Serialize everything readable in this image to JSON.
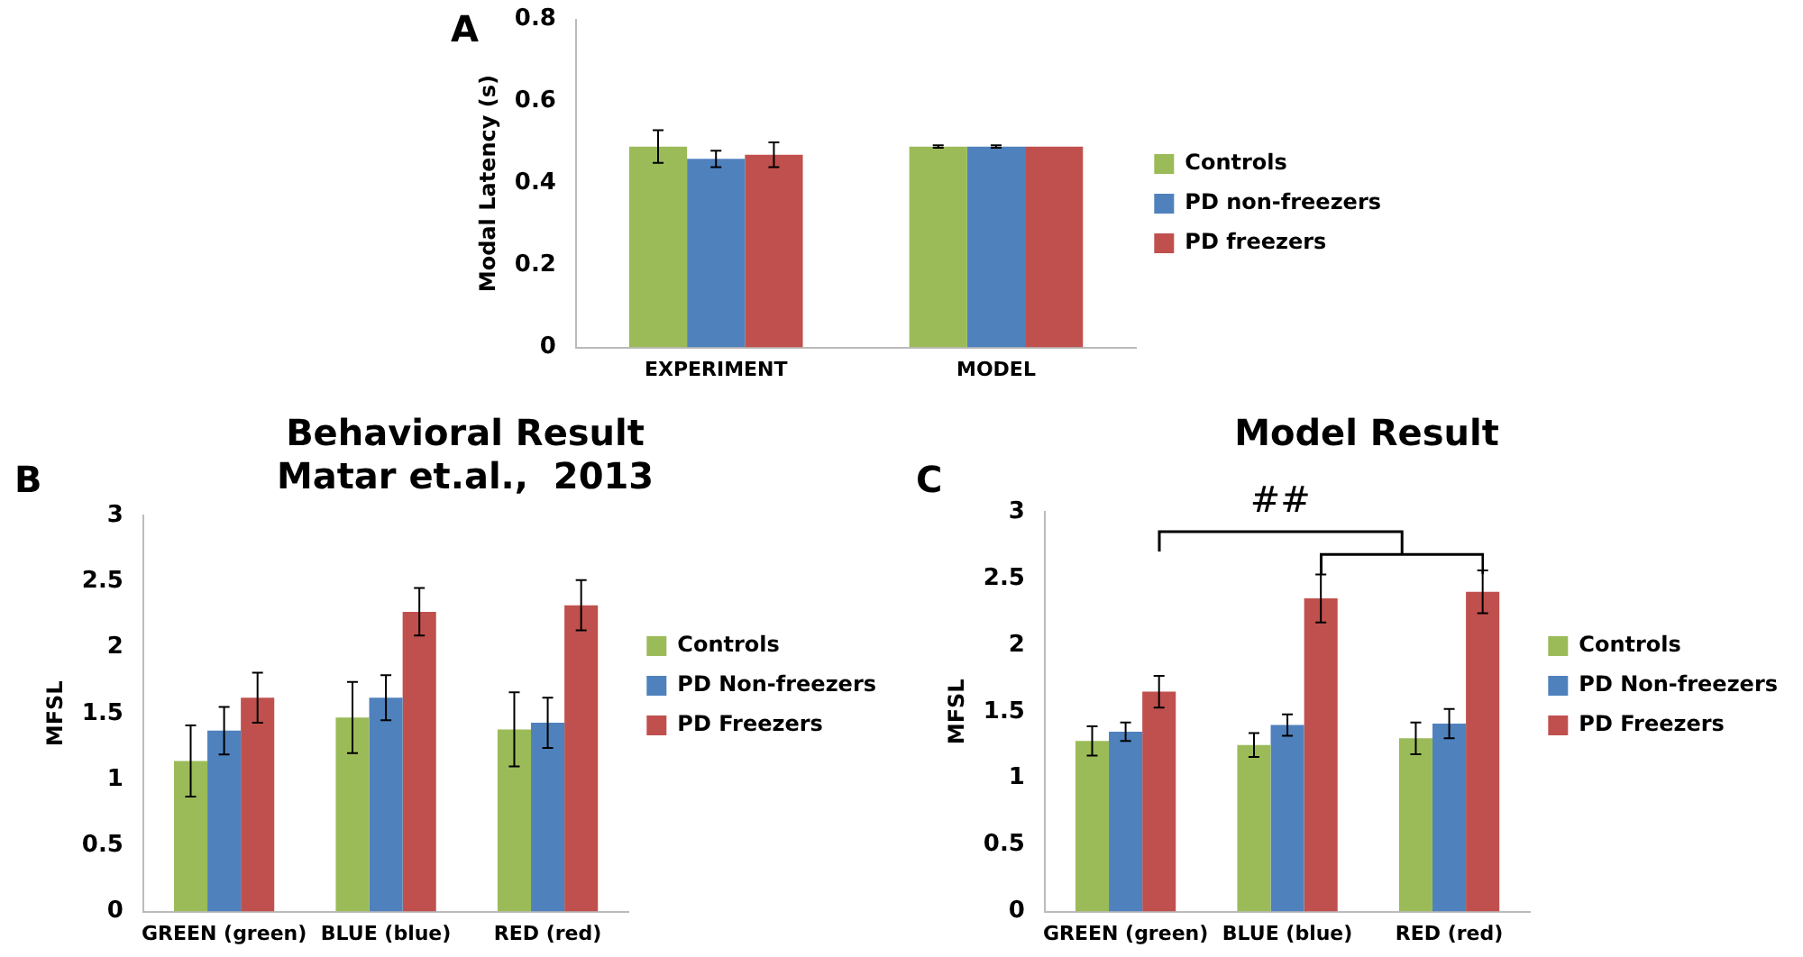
{
  "chart_data": [
    {
      "type": "bar",
      "annotations": [
        "A"
      ],
      "ylabel": "Modal Latency (s)",
      "categories": [
        "EXPERIMENT",
        "MODEL"
      ],
      "series": [
        {
          "name": "Controls",
          "color": "#9bbb59",
          "values": [
            0.49,
            0.49
          ],
          "errors": [
            0.04,
            0.003
          ]
        },
        {
          "name": "PD non-freezers",
          "color": "#4f81bd",
          "values": [
            0.46,
            0.49
          ],
          "errors": [
            0.02,
            0.003
          ]
        },
        {
          "name": "PD freezers",
          "color": "#c0504d",
          "values": [
            0.47,
            0.49
          ],
          "errors": [
            0.03,
            null
          ]
        }
      ],
      "ylim": [
        0,
        0.8
      ],
      "yticks": [
        0,
        0.2,
        0.4,
        0.6,
        0.8
      ],
      "grid": false,
      "legend": "right"
    },
    {
      "type": "bar",
      "annotations": [
        "B"
      ],
      "title": "Behavioral Result",
      "subtitle": "Matar et.al.,  2013",
      "ylabel": "MFSL",
      "categories": [
        "GREEN (green)",
        "BLUE (blue)",
        "RED (red)"
      ],
      "series": [
        {
          "name": "Controls",
          "color": "#9bbb59",
          "values": [
            1.14,
            1.47,
            1.38
          ],
          "errors": [
            0.27,
            0.27,
            0.28
          ]
        },
        {
          "name": "PD Non-freezers",
          "color": "#4f81bd",
          "values": [
            1.37,
            1.62,
            1.43
          ],
          "errors": [
            0.18,
            0.17,
            0.19
          ]
        },
        {
          "name": "PD Freezers",
          "color": "#c0504d",
          "values": [
            1.62,
            2.27,
            2.32
          ],
          "errors": [
            0.19,
            0.18,
            0.19
          ]
        }
      ],
      "ylim": [
        0,
        3
      ],
      "yticks": [
        0,
        0.5,
        1,
        1.5,
        2,
        2.5,
        3
      ],
      "grid": false,
      "legend": "right"
    },
    {
      "type": "bar",
      "annotations": [
        "C",
        "##"
      ],
      "title": "Model Result",
      "ylabel": "MFSL",
      "categories": [
        "GREEN (green)",
        "BLUE (blue)",
        "RED (red)"
      ],
      "series": [
        {
          "name": "Controls",
          "color": "#9bbb59",
          "values": [
            1.28,
            1.25,
            1.3
          ],
          "errors": [
            0.11,
            0.09,
            0.12
          ]
        },
        {
          "name": "PD Non-freezers",
          "color": "#4f81bd",
          "values": [
            1.35,
            1.4,
            1.41
          ],
          "errors": [
            0.07,
            0.08,
            0.11
          ]
        },
        {
          "name": "PD Freezers",
          "color": "#c0504d",
          "values": [
            1.65,
            2.35,
            2.4
          ],
          "errors": [
            0.12,
            0.18,
            0.16
          ]
        }
      ],
      "ylim": [
        0,
        3
      ],
      "yticks": [
        0,
        0.5,
        1,
        1.5,
        2,
        2.5,
        3
      ],
      "grid": false,
      "legend": "right"
    }
  ]
}
